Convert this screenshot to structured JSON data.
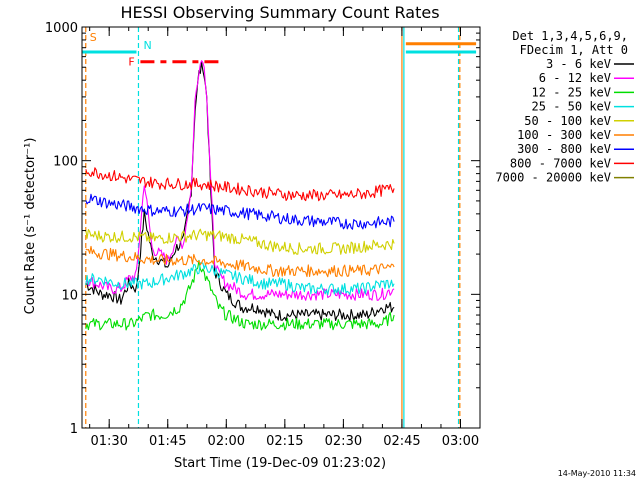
{
  "chart_data": {
    "type": "line",
    "title": "HESSI Observing Summary Count Rates",
    "xlabel": "Start Time (19-Dec-09 01:23:02)",
    "ylabel": "Count Rate (s⁻¹ detector⁻¹)",
    "y_scale": "log",
    "ylim": [
      1,
      1000
    ],
    "y_ticks": [
      {
        "value": 1,
        "label": "1"
      },
      {
        "value": 10,
        "label": "10"
      },
      {
        "value": 100,
        "label": "100"
      },
      {
        "value": 1000,
        "label": "1000"
      }
    ],
    "xlim": [
      "01:23:02",
      "03:05:00"
    ],
    "x_ticks": [
      {
        "value": "01:30",
        "label": "01:30"
      },
      {
        "value": "01:45",
        "label": "01:45"
      },
      {
        "value": "02:00",
        "label": "02:00"
      },
      {
        "value": "02:15",
        "label": "02:15"
      },
      {
        "value": "02:30",
        "label": "02:30"
      },
      {
        "value": "02:45",
        "label": "02:45"
      },
      {
        "value": "03:00",
        "label": "03:00"
      }
    ],
    "legend_header": [
      "Det 1,3,4,5,6,9,",
      "FDecim 1, Att 0"
    ],
    "legend_position": "right",
    "series": [
      {
        "name": "3 - 6 keV",
        "color": "#000000",
        "x": [
          "01:24",
          "01:26",
          "01:28",
          "01:30",
          "01:33",
          "01:35",
          "01:37",
          "01:39",
          "01:41",
          "01:43",
          "01:45",
          "01:47",
          "01:49",
          "01:51",
          "01:52",
          "01:53",
          "01:54",
          "01:55",
          "01:56",
          "01:57",
          "01:58",
          "02:00",
          "02:04",
          "02:08",
          "02:12",
          "02:16",
          "02:20",
          "02:24",
          "02:28",
          "02:32",
          "02:36",
          "02:40",
          "02:43"
        ],
        "y": [
          12,
          11,
          10,
          10,
          9,
          12,
          11,
          40,
          20,
          18,
          16,
          22,
          25,
          60,
          250,
          450,
          520,
          300,
          60,
          15,
          13,
          10,
          8,
          8,
          7,
          7,
          7,
          7,
          7,
          7,
          7,
          8,
          8
        ]
      },
      {
        "name": "6 - 12 keV",
        "color": "#ff00ff",
        "x": [
          "01:24",
          "01:27",
          "01:30",
          "01:33",
          "01:35",
          "01:37",
          "01:39",
          "01:41",
          "01:43",
          "01:45",
          "01:47",
          "01:49",
          "01:51",
          "01:52",
          "01:53",
          "01:54",
          "01:55",
          "01:56",
          "01:57",
          "01:58",
          "02:00",
          "02:05",
          "02:10",
          "02:15",
          "02:20",
          "02:25",
          "02:30",
          "02:35",
          "02:40",
          "02:43"
        ],
        "y": [
          13,
          12,
          11,
          11,
          13,
          14,
          70,
          22,
          20,
          18,
          25,
          24,
          60,
          280,
          500,
          600,
          320,
          70,
          18,
          14,
          12,
          10,
          10,
          10,
          10,
          10,
          10,
          10,
          10,
          11
        ]
      },
      {
        "name": "12 - 25 keV",
        "color": "#00dd00",
        "x": [
          "01:24",
          "01:28",
          "01:32",
          "01:36",
          "01:40",
          "01:44",
          "01:48",
          "01:50",
          "01:52",
          "01:53",
          "01:54",
          "01:56",
          "01:58",
          "02:00",
          "02:05",
          "02:10",
          "02:15",
          "02:20",
          "02:25",
          "02:30",
          "02:35",
          "02:40",
          "02:43"
        ],
        "y": [
          6,
          6,
          6,
          6,
          7,
          7,
          8,
          10,
          14,
          18,
          15,
          11,
          8,
          7,
          6,
          6,
          6,
          6,
          6,
          6,
          6,
          6,
          7
        ]
      },
      {
        "name": "25 - 50 keV",
        "color": "#00e0e0",
        "x": [
          "01:24",
          "01:28",
          "01:32",
          "01:36",
          "01:40",
          "01:44",
          "01:48",
          "01:51",
          "01:54",
          "01:57",
          "02:00",
          "02:05",
          "02:10",
          "02:15",
          "02:20",
          "02:25",
          "02:30",
          "02:35",
          "02:40",
          "02:43"
        ],
        "y": [
          13,
          13,
          12,
          12,
          12,
          13,
          14,
          15,
          16,
          15,
          14,
          13,
          12,
          12,
          11,
          11,
          11,
          11,
          12,
          12
        ]
      },
      {
        "name": "50 - 100 keV",
        "color": "#d0d000",
        "x": [
          "01:24",
          "01:30",
          "01:36",
          "01:42",
          "01:48",
          "01:54",
          "02:00",
          "02:06",
          "02:12",
          "02:18",
          "02:24",
          "02:30",
          "02:36",
          "02:43"
        ],
        "y": [
          28,
          27,
          27,
          26,
          27,
          28,
          27,
          25,
          23,
          22,
          22,
          22,
          23,
          24
        ]
      },
      {
        "name": "100 - 300 keV",
        "color": "#ff7f00",
        "x": [
          "01:24",
          "01:30",
          "01:36",
          "01:42",
          "01:48",
          "01:54",
          "02:00",
          "02:06",
          "02:12",
          "02:18",
          "02:24",
          "02:30",
          "02:36",
          "02:43"
        ],
        "y": [
          21,
          20,
          19,
          18,
          18,
          18,
          17,
          16,
          15,
          15,
          15,
          15,
          15,
          16
        ]
      },
      {
        "name": "300 - 800 keV",
        "color": "#0000ff",
        "x": [
          "01:24",
          "01:30",
          "01:36",
          "01:42",
          "01:48",
          "01:54",
          "02:00",
          "02:06",
          "02:12",
          "02:18",
          "02:24",
          "02:30",
          "02:36",
          "02:43"
        ],
        "y": [
          53,
          48,
          45,
          42,
          42,
          44,
          42,
          40,
          38,
          36,
          35,
          34,
          34,
          35
        ]
      },
      {
        "name": "800 - 7000 keV",
        "color": "#ff0000",
        "x": [
          "01:24",
          "01:30",
          "01:36",
          "01:42",
          "01:48",
          "01:54",
          "02:00",
          "02:06",
          "02:12",
          "02:18",
          "02:24",
          "02:30",
          "02:36",
          "02:43"
        ],
        "y": [
          85,
          78,
          72,
          68,
          67,
          67,
          63,
          60,
          57,
          55,
          55,
          55,
          57,
          62
        ]
      },
      {
        "name": "7000 - 20000 keV",
        "color": "#808000",
        "x": [],
        "y": []
      }
    ],
    "annotations": {
      "markers": [
        {
          "label": "S",
          "color": "#ff7f00"
        },
        {
          "label": "N",
          "color": "#00e0e0"
        },
        {
          "label": "F",
          "color": "#ff0000"
        }
      ],
      "saa_bars": [
        {
          "color": "#00e0e0",
          "start": "01:23:02",
          "end": "01:37:00",
          "y": 650
        },
        {
          "color": "#00e0e0",
          "start": "02:46:00",
          "end": "03:04:00",
          "y": 650
        },
        {
          "color": "#ff7f00",
          "start": "02:46:00",
          "end": "03:04:00",
          "y": 750
        }
      ],
      "flare_bar": {
        "color": "#ff0000",
        "start": "01:38:00",
        "end": "01:59:00",
        "y": 550
      },
      "vertical_lines": [
        {
          "time": "01:24:00",
          "color": "#ff7f00",
          "style": "dashed"
        },
        {
          "time": "01:37:30",
          "color": "#00e0e0",
          "style": "dashed"
        },
        {
          "time": "02:45:00",
          "color": "#ff7f00",
          "style": "solid"
        },
        {
          "time": "02:45:30",
          "color": "#00e0e0",
          "style": "solid"
        },
        {
          "time": "02:59:30",
          "color": "#00e0e0",
          "style": "dashed"
        },
        {
          "time": "02:59:50",
          "color": "#ff7f00",
          "style": "dashed"
        }
      ]
    },
    "footer": "14-May-2010 11:34"
  }
}
